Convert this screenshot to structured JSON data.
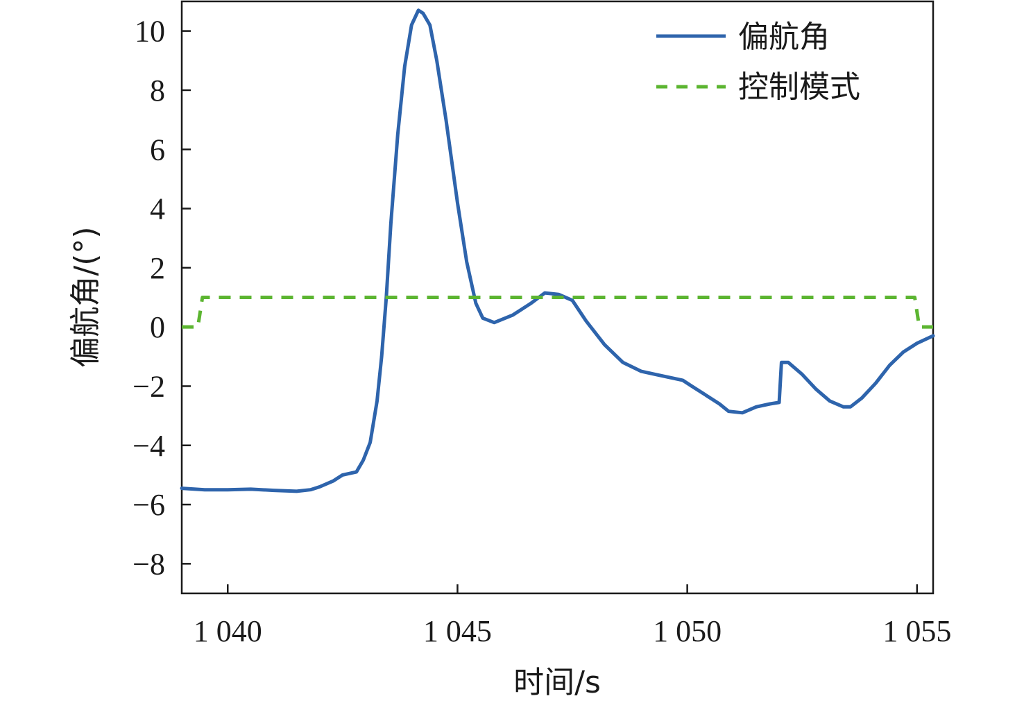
{
  "chart_data": {
    "type": "line",
    "xlabel": "时间/s",
    "ylabel": "偏航角/(°)",
    "xlim": [
      1039.0,
      1055.35
    ],
    "ylim": [
      -9.0,
      11.0
    ],
    "x_ticks": [
      1040,
      1045,
      1050,
      1055
    ],
    "x_tick_labels": [
      "1 040",
      "1 045",
      "1 050",
      "1 055"
    ],
    "y_ticks": [
      -8,
      -6,
      -4,
      -2,
      0,
      2,
      4,
      6,
      8,
      10
    ],
    "y_tick_labels": [
      "−8",
      "−6",
      "−4",
      "−2",
      "0",
      "2",
      "4",
      "6",
      "8",
      "10"
    ],
    "grid": false,
    "legend_position": "top-right",
    "series": [
      {
        "name": "偏航角",
        "color": "#2e64ac",
        "style": "solid",
        "x": [
          1039.0,
          1039.5,
          1040.0,
          1040.5,
          1041.0,
          1041.5,
          1041.8,
          1042.0,
          1042.3,
          1042.5,
          1042.8,
          1042.95,
          1043.1,
          1043.25,
          1043.35,
          1043.45,
          1043.55,
          1043.7,
          1043.85,
          1044.0,
          1044.15,
          1044.25,
          1044.4,
          1044.55,
          1044.75,
          1045.0,
          1045.2,
          1045.4,
          1045.55,
          1045.8,
          1046.2,
          1046.6,
          1046.9,
          1047.2,
          1047.5,
          1047.8,
          1048.2,
          1048.6,
          1049.0,
          1049.3,
          1049.6,
          1049.9,
          1050.1,
          1050.4,
          1050.7,
          1050.9,
          1051.2,
          1051.5,
          1051.8,
          1052.0,
          1052.05,
          1052.2,
          1052.5,
          1052.8,
          1053.1,
          1053.4,
          1053.55,
          1053.8,
          1054.1,
          1054.4,
          1054.7,
          1055.0,
          1055.35
        ],
        "values": [
          -5.45,
          -5.5,
          -5.5,
          -5.48,
          -5.52,
          -5.55,
          -5.5,
          -5.4,
          -5.2,
          -5.0,
          -4.9,
          -4.5,
          -3.9,
          -2.5,
          -1.0,
          1.0,
          3.5,
          6.5,
          8.8,
          10.2,
          10.7,
          10.6,
          10.2,
          9.0,
          7.0,
          4.2,
          2.2,
          0.8,
          0.3,
          0.15,
          0.4,
          0.8,
          1.15,
          1.1,
          0.9,
          0.2,
          -0.6,
          -1.2,
          -1.5,
          -1.6,
          -1.7,
          -1.8,
          -2.0,
          -2.3,
          -2.6,
          -2.85,
          -2.9,
          -2.7,
          -2.6,
          -2.55,
          -1.2,
          -1.2,
          -1.6,
          -2.1,
          -2.5,
          -2.7,
          -2.7,
          -2.4,
          -1.9,
          -1.3,
          -0.85,
          -0.55,
          -0.3
        ]
      },
      {
        "name": "控制模式",
        "color": "#5cb531",
        "style": "dashed",
        "x": [
          1039.0,
          1039.35,
          1039.45,
          1054.95,
          1055.05,
          1055.35
        ],
        "values": [
          0,
          0,
          1,
          1,
          0,
          0
        ]
      }
    ]
  }
}
